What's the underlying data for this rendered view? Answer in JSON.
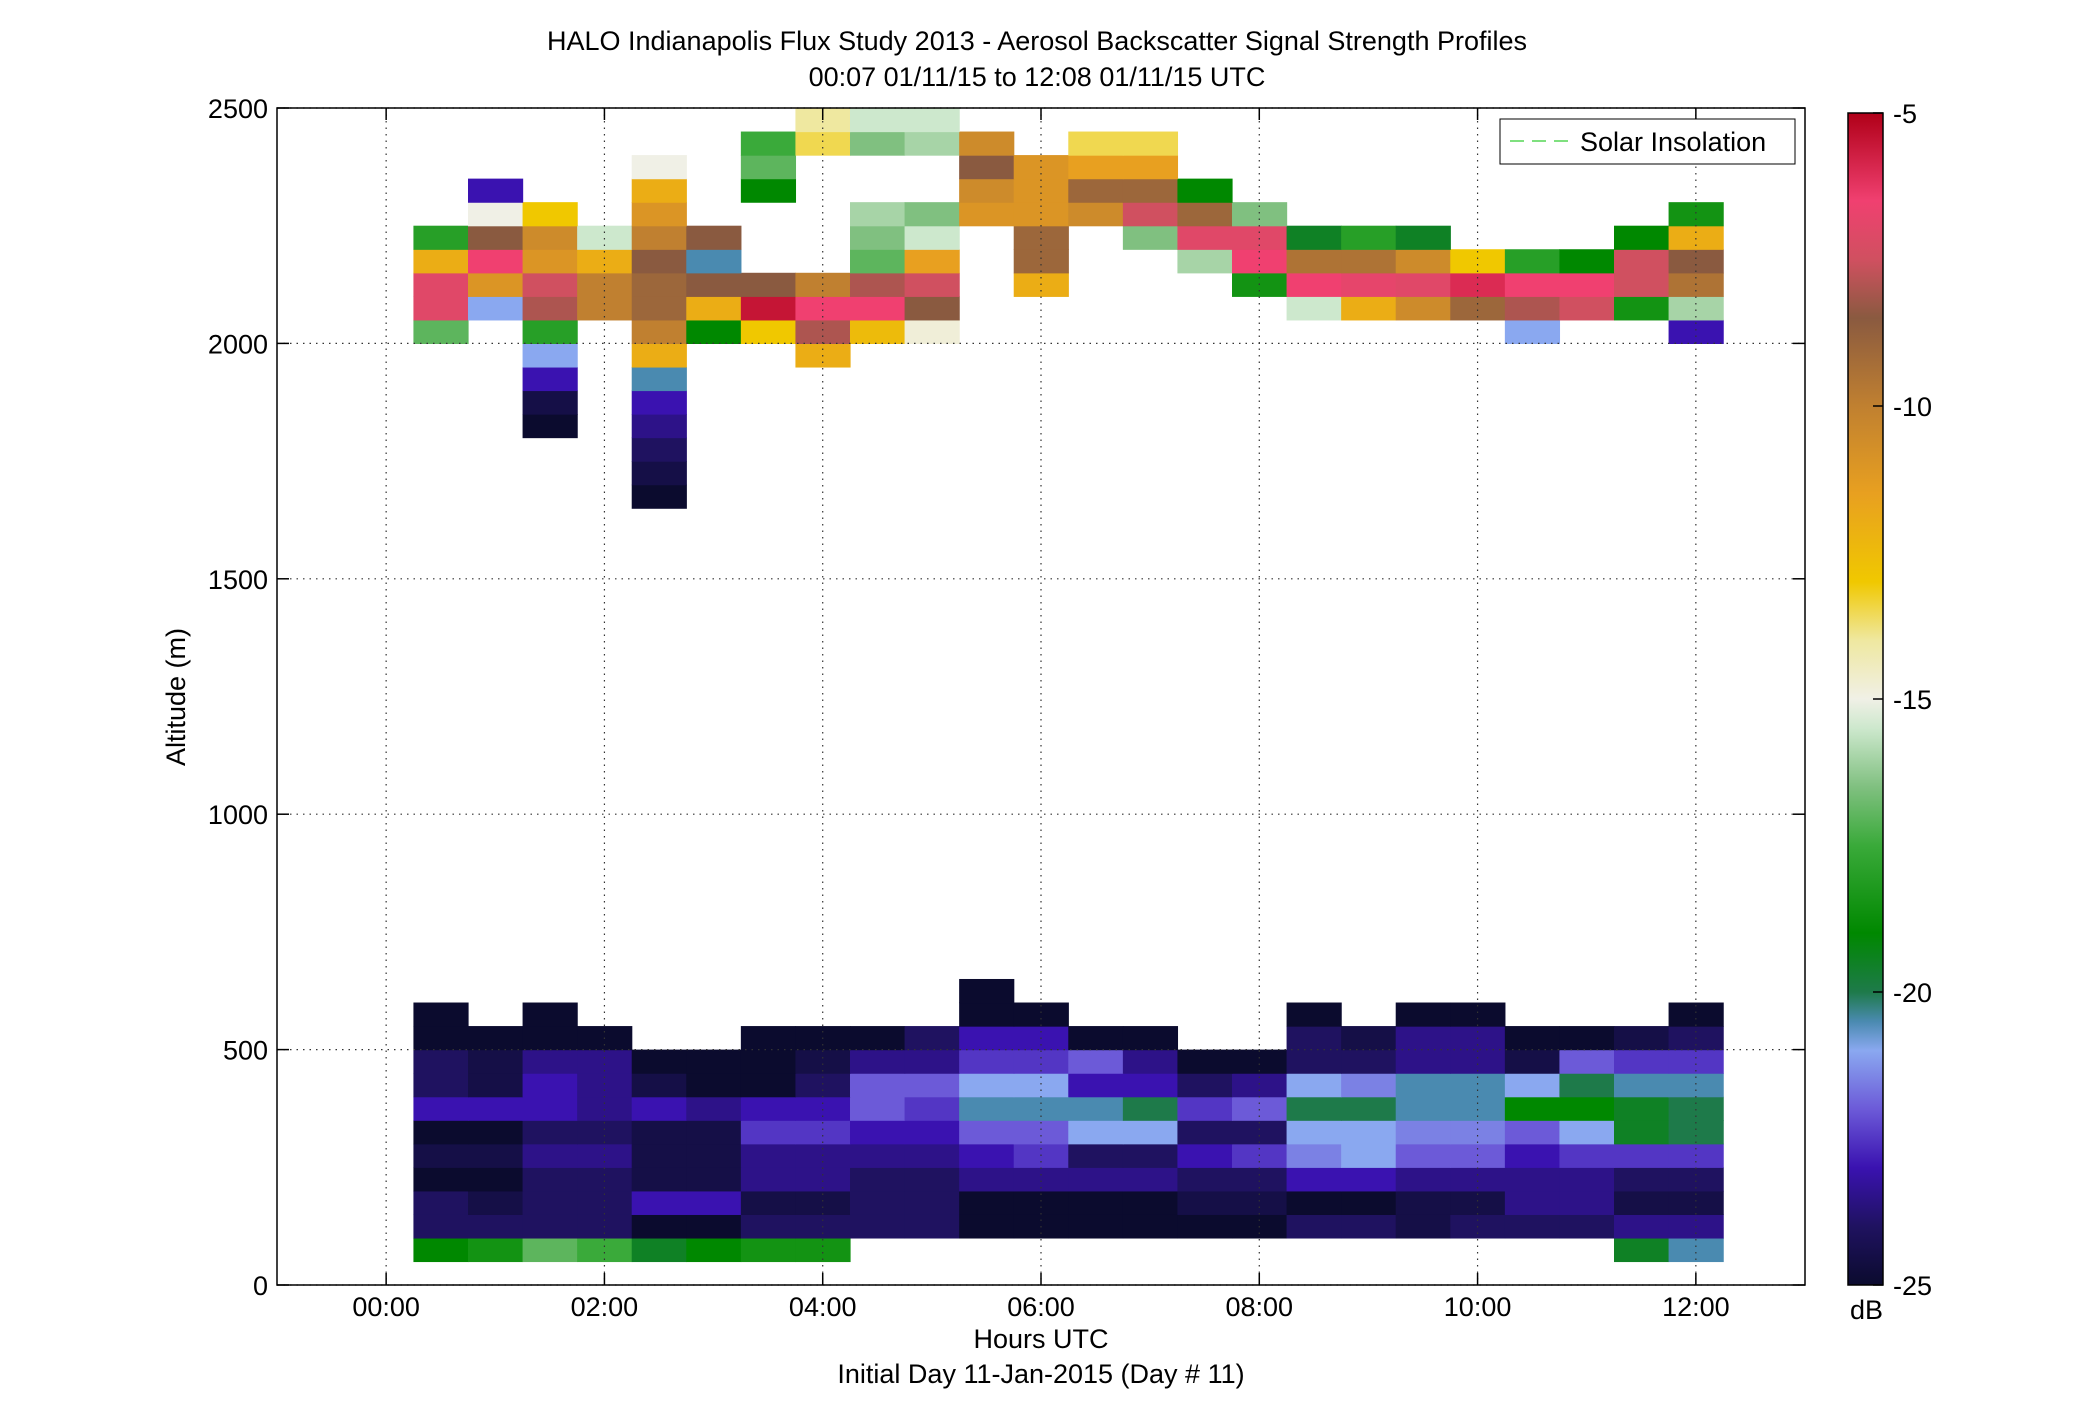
{
  "chart_data": {
    "type": "heatmap",
    "title": "HALO Indianapolis Flux Study 2013 - Aerosol Backscatter Signal Strength Profiles",
    "subtitle": "00:07 01/11/15 to 12:08 01/11/15  UTC",
    "xlabel": "Hours UTC",
    "xlabel2": "Initial Day 11-Jan-2015 (Day # 11)",
    "ylabel": "Altitude (m)",
    "x_ticks": [
      "00:00",
      "02:00",
      "04:00",
      "06:00",
      "08:00",
      "10:00",
      "12:00"
    ],
    "y_ticks": [
      "0",
      "500",
      "1000",
      "1500",
      "2000",
      "2500"
    ],
    "xlim_hours": [
      -1,
      13
    ],
    "ylim": [
      0,
      2500
    ],
    "grid": true,
    "legend": {
      "position": "top-right",
      "label": "Solar Insolation",
      "color": "#7fe07f"
    },
    "colorbar": {
      "unit": "dB",
      "range": [
        -25,
        -5
      ],
      "ticks": [
        "-5",
        "-10",
        "-15",
        "-20",
        "-25"
      ],
      "stops": [
        {
          "v": -25,
          "c": "#0b0b2e"
        },
        {
          "v": -24,
          "c": "#1f1260"
        },
        {
          "v": -23,
          "c": "#3a12b0"
        },
        {
          "v": -22,
          "c": "#6c5ad8"
        },
        {
          "v": -21,
          "c": "#8aa8f0"
        },
        {
          "v": -20.5,
          "c": "#4a8ab0"
        },
        {
          "v": -20,
          "c": "#1e7a4a"
        },
        {
          "v": -19,
          "c": "#008800"
        },
        {
          "v": -17.5,
          "c": "#3aaa3a"
        },
        {
          "v": -16.5,
          "c": "#80c080"
        },
        {
          "v": -15.5,
          "c": "#cde8cd"
        },
        {
          "v": -15,
          "c": "#f0f0e6"
        },
        {
          "v": -14,
          "c": "#efe8a0"
        },
        {
          "v": -13,
          "c": "#f0c800"
        },
        {
          "v": -11.5,
          "c": "#e8a020"
        },
        {
          "v": -10,
          "c": "#c08030"
        },
        {
          "v": -8.5,
          "c": "#8a5a40"
        },
        {
          "v": -7.5,
          "c": "#d05060"
        },
        {
          "v": -6.5,
          "c": "#f04070"
        },
        {
          "v": -5,
          "c": "#b00018"
        }
      ]
    },
    "time_hours": [
      0.5,
      1.0,
      1.5,
      2.0,
      2.5,
      3.0,
      3.5,
      4.0,
      4.5,
      5.0,
      5.5,
      6.0,
      6.5,
      7.0,
      7.5,
      8.0,
      8.5,
      9.0,
      9.5,
      10.0,
      10.5,
      11.0,
      11.5,
      12.0
    ],
    "altitude_bins_m": [
      75,
      125,
      175,
      225,
      275,
      325,
      375,
      425,
      475,
      525,
      575,
      625,
      1675,
      1725,
      1775,
      1825,
      1875,
      1925,
      1975,
      2025,
      2075,
      2125,
      2175,
      2225,
      2275,
      2325,
      2375,
      2425,
      2475
    ],
    "dB": [
      [
        -19,
        -18.5,
        -17,
        -17.5,
        -19.5,
        -19,
        -18.5,
        -18.5,
        null,
        null,
        null,
        null,
        null,
        null,
        null,
        null,
        null,
        null,
        null,
        null,
        null,
        null,
        -19.5,
        -20.5
      ],
      [
        -24,
        -24,
        -24,
        -24,
        -25,
        -25,
        -24,
        -24,
        -24,
        -24,
        -25,
        -25,
        -25,
        -25,
        -25,
        -25,
        -24,
        -24,
        -24.5,
        -24,
        -24,
        -24,
        -23.5,
        -23.5
      ],
      [
        -24,
        -24.5,
        -24,
        -24,
        -23,
        -23,
        -24.5,
        -24.5,
        -24,
        -24,
        -25,
        -25,
        -25,
        -25,
        -24.5,
        -24.5,
        -25,
        -25,
        -24.5,
        -24.5,
        -23.5,
        -23.5,
        -24.5,
        -24.5
      ],
      [
        -25,
        -25,
        -24,
        -24,
        -24.5,
        -24.5,
        -23.5,
        -23.5,
        -24,
        -24,
        -23.5,
        -23.5,
        -23.5,
        -23.5,
        -24,
        -24,
        -23,
        -23,
        -23.5,
        -23.5,
        -23.5,
        -23.5,
        -24,
        -24
      ],
      [
        -24.5,
        -24.5,
        -23.5,
        -23.5,
        -24.5,
        -24.5,
        -23.5,
        -23.5,
        -23.5,
        -23.5,
        -23,
        -22.5,
        -24,
        -24,
        -23,
        -22.5,
        -21.5,
        -21,
        -22,
        -22,
        -23,
        -22.5,
        -22.5,
        -22.5
      ],
      [
        -25,
        -25,
        -24,
        -24,
        -24.5,
        -24.5,
        -22.5,
        -22.5,
        -23,
        -23,
        -22,
        -22,
        -21,
        -21,
        -24,
        -24,
        -21,
        -21,
        -21.5,
        -21.5,
        -22,
        -21,
        -19.5,
        -20
      ],
      [
        -23,
        -23,
        -23,
        -23.5,
        -23,
        -23.5,
        -23,
        -23,
        -22,
        -22.5,
        -20.5,
        -20.5,
        -20.5,
        -20,
        -22.5,
        -22,
        -20,
        -20,
        -20.5,
        -20.5,
        -19,
        -19,
        -19.5,
        -20
      ],
      [
        -24,
        -24.5,
        -23,
        -23.5,
        -24.5,
        -25,
        -25,
        -24,
        -22,
        -22,
        -21,
        -21,
        -23,
        -23,
        -24,
        -23.5,
        -21,
        -21.5,
        -20.5,
        -20.5,
        -21,
        -20,
        -20.5,
        -20.5
      ],
      [
        -24,
        -24.5,
        -23.5,
        -23.5,
        -25,
        -25,
        -25,
        -24.5,
        -23.5,
        -23.5,
        -22.5,
        -22.5,
        -22,
        -23.5,
        -25,
        -25,
        -24,
        -24,
        -23.5,
        -23.5,
        -24.5,
        -22,
        -22.5,
        -22.5
      ],
      [
        -25,
        -25,
        -25,
        -25,
        null,
        null,
        -25,
        -25,
        -25,
        -24,
        -23,
        -23,
        -25,
        -25,
        null,
        null,
        -24,
        -24.5,
        -23.5,
        -23.5,
        -25,
        -25,
        -24.5,
        -24
      ],
      [
        -25,
        null,
        -25,
        null,
        null,
        null,
        null,
        null,
        null,
        null,
        -25,
        -25,
        null,
        null,
        null,
        null,
        -25,
        null,
        -25,
        -25,
        null,
        null,
        null,
        -25
      ],
      [
        null,
        null,
        null,
        null,
        null,
        null,
        null,
        null,
        null,
        null,
        -25,
        null,
        null,
        null,
        null,
        null,
        null,
        null,
        null,
        null,
        null,
        null,
        null,
        null
      ],
      [
        null,
        null,
        null,
        null,
        -25,
        null,
        null,
        null,
        null,
        null,
        null,
        null,
        null,
        null,
        null,
        null,
        null,
        null,
        null,
        null,
        null,
        null,
        null,
        null
      ],
      [
        null,
        null,
        null,
        null,
        -24.5,
        null,
        null,
        null,
        null,
        null,
        null,
        null,
        null,
        null,
        null,
        null,
        null,
        null,
        null,
        null,
        null,
        null,
        null,
        null
      ],
      [
        null,
        null,
        null,
        null,
        -24,
        null,
        null,
        null,
        null,
        null,
        null,
        null,
        null,
        null,
        null,
        null,
        null,
        null,
        null,
        null,
        null,
        null,
        null,
        null
      ],
      [
        null,
        null,
        -25,
        null,
        -23.5,
        null,
        null,
        null,
        null,
        null,
        null,
        null,
        null,
        null,
        null,
        null,
        null,
        null,
        null,
        null,
        null,
        null,
        null,
        null
      ],
      [
        null,
        null,
        -24.5,
        null,
        -23,
        null,
        null,
        null,
        null,
        null,
        null,
        null,
        null,
        null,
        null,
        null,
        null,
        null,
        null,
        null,
        null,
        null,
        null,
        null
      ],
      [
        null,
        null,
        -23,
        null,
        -20.5,
        null,
        null,
        null,
        null,
        null,
        null,
        null,
        null,
        null,
        null,
        null,
        null,
        null,
        null,
        null,
        null,
        null,
        null,
        null
      ],
      [
        null,
        null,
        -21,
        null,
        -12,
        null,
        null,
        -12,
        null,
        null,
        null,
        null,
        null,
        null,
        null,
        null,
        null,
        null,
        null,
        null,
        null,
        null,
        null,
        null
      ],
      [
        -17,
        null,
        -18,
        null,
        -10,
        -19,
        -13,
        -8,
        -12.5,
        -14.8,
        null,
        null,
        null,
        null,
        null,
        null,
        null,
        null,
        null,
        null,
        -21,
        null,
        null,
        -23
      ],
      [
        -7,
        -21,
        -8,
        -10,
        -9,
        -12,
        -5.5,
        -6.5,
        -6.5,
        -8.5,
        null,
        null,
        null,
        null,
        null,
        null,
        -15.5,
        -12,
        -10.5,
        -9,
        -8,
        -7.5,
        -18.5,
        -16
      ],
      [
        -7,
        -11,
        -7.5,
        -10,
        -9,
        -8.5,
        -8.5,
        -10,
        -8,
        -7.5,
        null,
        -12,
        null,
        null,
        null,
        -18.5,
        -6.5,
        -6.8,
        -7,
        -6,
        -6.5,
        -6.5,
        -7.5,
        -9.5
      ],
      [
        -12,
        -6.5,
        -11,
        -12,
        -8.5,
        -20.5,
        null,
        null,
        -17,
        -11.5,
        null,
        -9,
        null,
        null,
        -16,
        -6.5,
        -9.5,
        -9.5,
        -10.5,
        -13,
        -18,
        -19,
        -7.5,
        -8.5
      ],
      [
        -18,
        -8.5,
        -10.5,
        -15.5,
        -10,
        -8.5,
        null,
        null,
        -16.5,
        -15.5,
        null,
        -9,
        null,
        -16.5,
        -7,
        -7,
        -19.5,
        -18,
        -19.5,
        null,
        null,
        null,
        -19,
        -12
      ],
      [
        null,
        -15,
        -13,
        null,
        -11,
        null,
        null,
        null,
        -16,
        -16.5,
        -11,
        -11,
        -10.5,
        -7.5,
        -9,
        -16.5,
        null,
        null,
        null,
        null,
        null,
        null,
        null,
        -18.5
      ],
      [
        null,
        -23,
        null,
        null,
        -12,
        null,
        -19,
        null,
        null,
        null,
        -10.5,
        -11,
        -9,
        -9,
        -19,
        null,
        null,
        null,
        null,
        null,
        null,
        null,
        null,
        null
      ],
      [
        null,
        null,
        null,
        null,
        -15,
        null,
        -17,
        null,
        null,
        null,
        -8.5,
        -11,
        -11.5,
        -11.5,
        null,
        null,
        null,
        null,
        null,
        null,
        null,
        null,
        null,
        null
      ],
      [
        null,
        null,
        null,
        null,
        null,
        null,
        -17.5,
        -13.5,
        -16.5,
        -16,
        -10.5,
        null,
        -13.5,
        -13.5,
        null,
        null,
        null,
        null,
        null,
        null,
        null,
        null,
        null,
        null
      ],
      [
        null,
        null,
        null,
        null,
        null,
        null,
        null,
        -14,
        -15.5,
        -15.5,
        null,
        null,
        null,
        null,
        null,
        null,
        null,
        null,
        null,
        null,
        null,
        null,
        null,
        null
      ]
    ]
  }
}
